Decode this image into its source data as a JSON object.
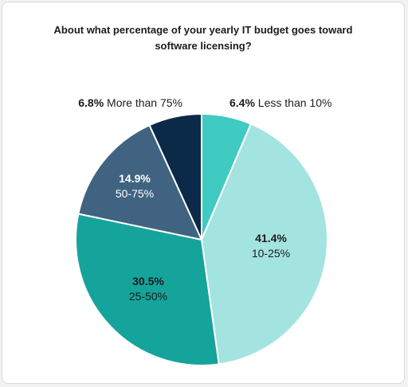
{
  "chart_data": {
    "type": "pie",
    "title": "About what percentage of your yearly IT budget goes toward software licensing?",
    "title_lines": [
      "About what percentage of your yearly IT budget goes toward",
      "software licensing?"
    ],
    "slices": [
      {
        "label": "Less than 10%",
        "pct_text": "6.4%",
        "value": 6.4,
        "color": "#3fcac2",
        "text_color": "#1c1c1c",
        "label_placement": "outside"
      },
      {
        "label": "10-25%",
        "pct_text": "41.4%",
        "value": 41.4,
        "color": "#a4e4e0",
        "text_color": "#1c1c1c",
        "label_placement": "inside"
      },
      {
        "label": "25-50%",
        "pct_text": "30.5%",
        "value": 30.5,
        "color": "#15a49b",
        "text_color": "#1c1c1c",
        "label_placement": "inside"
      },
      {
        "label": "50-75%",
        "pct_text": "14.9%",
        "value": 14.9,
        "color": "#3f6381",
        "text_color": "#ffffff",
        "label_placement": "inside"
      },
      {
        "label": "More than 75%",
        "pct_text": "6.8%",
        "value": 6.8,
        "color": "#0b2a4a",
        "text_color": "#1c1c1c",
        "label_placement": "outside"
      }
    ],
    "legend": "none"
  }
}
